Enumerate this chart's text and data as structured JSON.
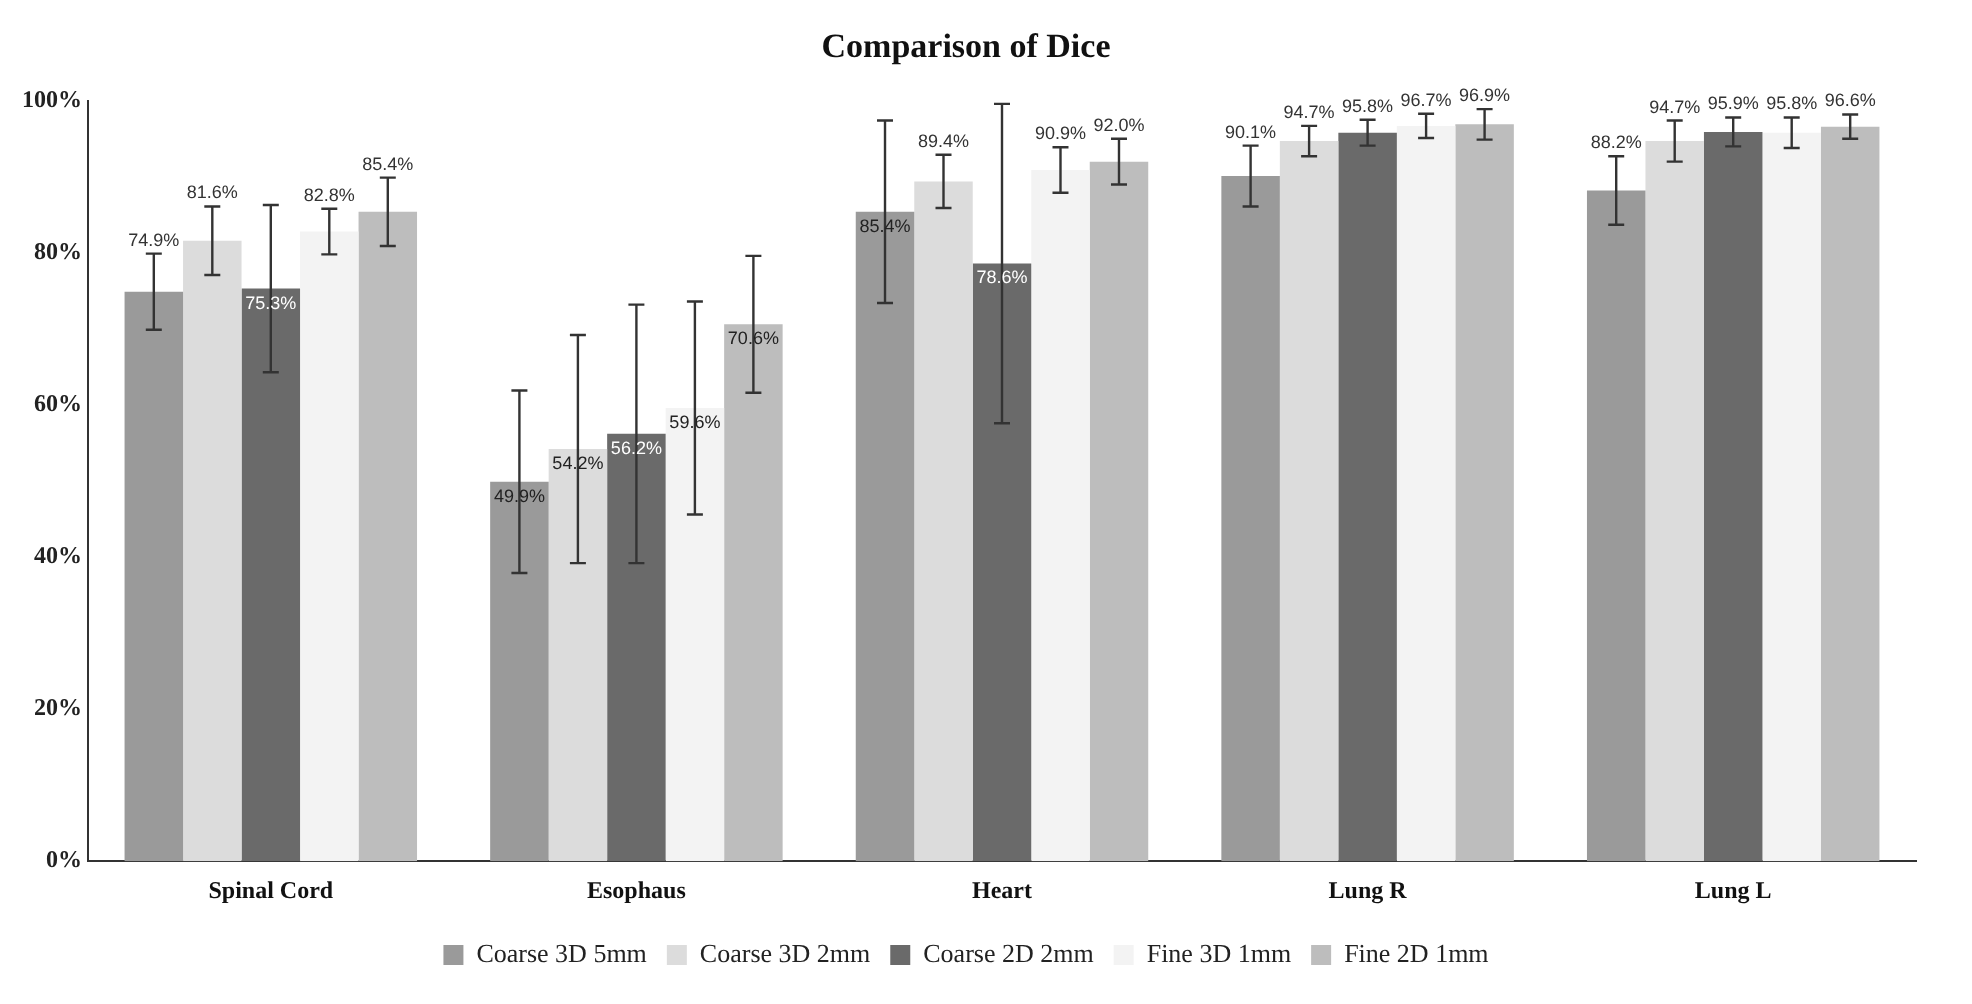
{
  "chart_data": {
    "type": "bar",
    "title": "Comparison of Dice",
    "categories": [
      "Spinal Cord",
      "Esophaus",
      "Heart",
      "Lung R",
      "Lung L"
    ],
    "series": [
      {
        "name": "Coarse 3D 5mm",
        "color": "#9a9a9a",
        "values": [
          74.9,
          49.9,
          85.4,
          90.1,
          88.2
        ],
        "errors": [
          5,
          12,
          12,
          4,
          4.5
        ],
        "value_labels": [
          "74.9%",
          "49.9%",
          "85.4%",
          "90.1%",
          "88.2%"
        ]
      },
      {
        "name": "Coarse 3D 2mm",
        "color": "#dcdcdc",
        "values": [
          81.6,
          54.2,
          89.4,
          94.7,
          94.7
        ],
        "errors": [
          4.5,
          15,
          3.5,
          2,
          2.7
        ],
        "value_labels": [
          "81.6%",
          "54.2%",
          "89.4%",
          "94.7%",
          "94.7%"
        ]
      },
      {
        "name": "Coarse 2D 2mm",
        "color": "#6a6a6a",
        "values": [
          75.3,
          56.2,
          78.6,
          95.8,
          95.9
        ],
        "errors": [
          11,
          17,
          21,
          1.7,
          1.9
        ],
        "value_labels": [
          "75.3%",
          "56.2%",
          "78.6%",
          "95.8%",
          "95.9%"
        ]
      },
      {
        "name": "Fine 3D 1mm",
        "color": "#f3f3f3",
        "values": [
          82.8,
          59.6,
          90.9,
          96.7,
          95.8
        ],
        "errors": [
          3,
          14,
          3,
          1.6,
          2
        ],
        "value_labels": [
          "82.8%",
          "59.6%",
          "90.9%",
          "96.7%",
          "95.8%"
        ]
      },
      {
        "name": "Fine 2D 1mm",
        "color": "#bdbdbd",
        "values": [
          85.4,
          70.6,
          92.0,
          96.9,
          96.6
        ],
        "errors": [
          4.5,
          9,
          3,
          2,
          1.6
        ],
        "value_labels": [
          "85.4%",
          "70.6%",
          "92.0%",
          "96.9%",
          "96.6%"
        ]
      }
    ],
    "ylim": [
      0,
      100
    ],
    "yticks": [
      {
        "value": 0,
        "label": "0%"
      },
      {
        "value": 20,
        "label": "20%"
      },
      {
        "value": 40,
        "label": "40%"
      },
      {
        "value": 60,
        "label": "60%"
      },
      {
        "value": 80,
        "label": "80%"
      },
      {
        "value": 100,
        "label": "100%"
      }
    ],
    "grid": false,
    "legend": "bottom"
  }
}
